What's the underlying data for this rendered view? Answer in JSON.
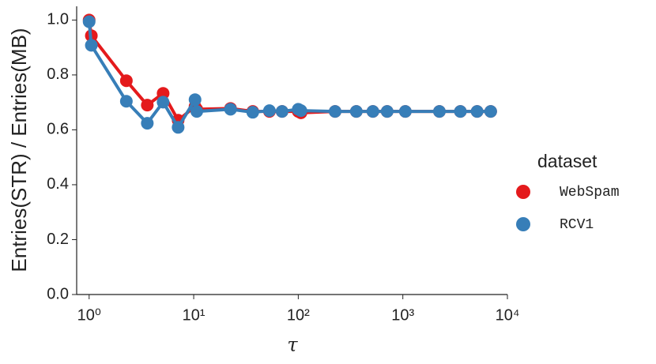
{
  "chart_data": {
    "type": "line",
    "xlabel": "τ",
    "ylabel": "Entries(STR) / Entries(MB)",
    "legend_title": "dataset",
    "legend_position": "right",
    "x_scale": "log",
    "x": [
      1,
      1.05,
      2.27,
      3.6,
      5.1,
      7.1,
      10.3,
      10.7,
      22.5,
      36.7,
      53,
      70,
      100,
      106,
      225,
      359,
      517,
      708,
      1057,
      2237,
      3550,
      5130,
      6920
    ],
    "series": [
      {
        "name": "WebSpam",
        "color": "#e41a1c",
        "values": [
          1.0,
          0.943,
          0.779,
          0.69,
          0.733,
          0.635,
          0.685,
          0.675,
          0.678,
          0.667,
          0.667,
          0.667,
          0.667,
          0.662,
          0.667,
          0.667,
          0.667,
          0.667,
          0.667,
          0.667,
          0.667,
          0.667,
          0.667
        ]
      },
      {
        "name": "RCV1",
        "color": "#377eb8",
        "values": [
          0.994,
          0.908,
          0.704,
          0.624,
          0.701,
          0.609,
          0.71,
          0.667,
          0.675,
          0.664,
          0.67,
          0.667,
          0.675,
          0.67,
          0.667,
          0.667,
          0.667,
          0.667,
          0.667,
          0.667,
          0.667,
          0.667,
          0.667
        ]
      }
    ],
    "xlim": [
      0.76,
      10000
    ],
    "xticks": [
      {
        "value": 1,
        "label": "10⁰"
      },
      {
        "value": 10,
        "label": "10¹"
      },
      {
        "value": 100,
        "label": "10²"
      },
      {
        "value": 1000,
        "label": "10³"
      },
      {
        "value": 10000,
        "label": "10⁴"
      }
    ],
    "ylim": [
      0,
      1.05
    ],
    "yticks": [
      {
        "value": 0,
        "label": "0.0"
      },
      {
        "value": 0.2,
        "label": "0.2"
      },
      {
        "value": 0.4,
        "label": "0.4"
      },
      {
        "value": 0.6,
        "label": "0.6"
      },
      {
        "value": 0.8,
        "label": "0.8"
      },
      {
        "value": 1.0,
        "label": "1.0"
      }
    ],
    "grid": false
  }
}
